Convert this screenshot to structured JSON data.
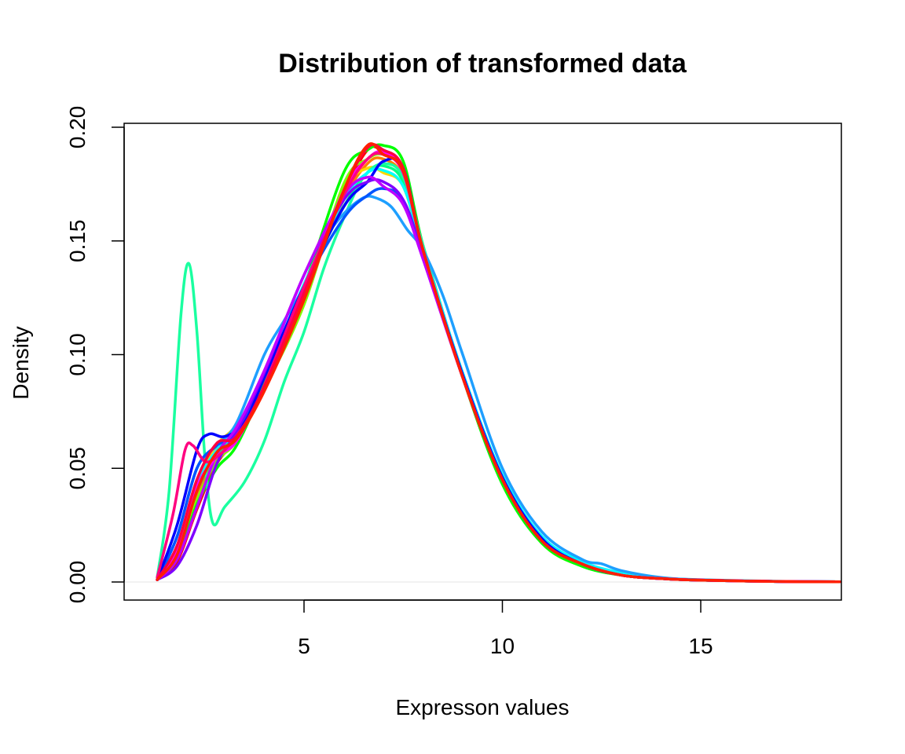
{
  "chart_data": {
    "type": "line",
    "title": "Distribution of transformed data",
    "xlabel": "Expresson values",
    "ylabel": "Density",
    "xlim": [
      0.8,
      18.5
    ],
    "ylim": [
      0,
      0.2
    ],
    "xticks": [
      5,
      10,
      15
    ],
    "xtick_labels": [
      "5",
      "10",
      "15"
    ],
    "yticks": [
      0,
      0.05,
      0.1,
      0.15,
      0.2
    ],
    "ytick_labels": [
      "0.00",
      "0.05",
      "0.10",
      "0.15",
      "0.20"
    ],
    "grid": false,
    "legend": "none",
    "series": [
      {
        "color": "#ff0000",
        "x": [
          1.3,
          1.8,
          2.3,
          2.8,
          3.3,
          4.0,
          5.0,
          6.0,
          6.6,
          7.0,
          7.5,
          8.0,
          9.0,
          10.0,
          11.0,
          12.0,
          13.0,
          14.0,
          15.0,
          17.0,
          18.5
        ],
        "y": [
          0.001,
          0.009,
          0.032,
          0.052,
          0.063,
          0.085,
          0.125,
          0.17,
          0.19,
          0.189,
          0.18,
          0.145,
          0.09,
          0.045,
          0.018,
          0.008,
          0.003,
          0.0015,
          0.0008,
          0.0002,
          0.0001
        ]
      },
      {
        "color": "#ff7f00",
        "x": [
          1.3,
          1.8,
          2.3,
          2.8,
          3.3,
          4.0,
          5.0,
          6.0,
          6.6,
          7.0,
          7.5,
          8.0,
          9.0,
          10.0,
          11.0,
          12.0,
          13.0,
          14.0,
          15.0,
          17.0,
          18.5
        ],
        "y": [
          0.001,
          0.012,
          0.038,
          0.055,
          0.065,
          0.088,
          0.127,
          0.168,
          0.184,
          0.186,
          0.178,
          0.146,
          0.09,
          0.046,
          0.019,
          0.008,
          0.003,
          0.0015,
          0.0008,
          0.0002,
          0.0001
        ]
      },
      {
        "color": "#ffd700",
        "x": [
          1.3,
          1.8,
          2.3,
          2.8,
          3.3,
          4.0,
          5.0,
          6.0,
          6.6,
          7.0,
          7.5,
          8.0,
          9.0,
          10.0,
          11.0,
          12.0,
          13.0,
          14.0,
          15.0,
          17.0,
          18.5
        ],
        "y": [
          0.001,
          0.014,
          0.042,
          0.06,
          0.069,
          0.088,
          0.128,
          0.172,
          0.182,
          0.18,
          0.174,
          0.145,
          0.091,
          0.046,
          0.019,
          0.008,
          0.003,
          0.0015,
          0.0008,
          0.0002,
          0.0001
        ]
      },
      {
        "color": "#80ff00",
        "x": [
          1.3,
          1.8,
          2.3,
          2.8,
          3.3,
          4.0,
          5.0,
          6.0,
          6.6,
          7.0,
          7.5,
          8.0,
          9.0,
          10.0,
          11.0,
          12.0,
          13.0,
          14.0,
          15.0,
          17.0,
          18.5
        ],
        "y": [
          0.001,
          0.012,
          0.036,
          0.053,
          0.062,
          0.085,
          0.122,
          0.175,
          0.186,
          0.188,
          0.182,
          0.146,
          0.09,
          0.044,
          0.017,
          0.007,
          0.003,
          0.0015,
          0.0008,
          0.0002,
          0.0001
        ]
      },
      {
        "color": "#00ff00",
        "x": [
          1.3,
          1.8,
          2.3,
          2.8,
          3.3,
          4.0,
          5.0,
          6.0,
          6.6,
          7.0,
          7.5,
          8.0,
          9.0,
          10.0,
          11.0,
          12.0,
          13.0,
          14.0,
          15.0,
          17.0,
          18.5
        ],
        "y": [
          0.001,
          0.01,
          0.034,
          0.05,
          0.06,
          0.087,
          0.13,
          0.18,
          0.19,
          0.192,
          0.185,
          0.148,
          0.09,
          0.043,
          0.017,
          0.007,
          0.003,
          0.0015,
          0.0008,
          0.0002,
          0.0001
        ]
      },
      {
        "color": "#00ff80",
        "x": [
          1.3,
          1.8,
          2.3,
          2.8,
          3.3,
          4.0,
          5.0,
          6.0,
          6.6,
          7.0,
          7.5,
          8.0,
          9.0,
          10.0,
          11.0,
          12.0,
          13.0,
          14.0,
          15.0,
          17.0,
          18.5
        ],
        "y": [
          0.001,
          0.013,
          0.04,
          0.056,
          0.066,
          0.09,
          0.13,
          0.165,
          0.18,
          0.183,
          0.176,
          0.145,
          0.091,
          0.046,
          0.019,
          0.008,
          0.003,
          0.0015,
          0.0008,
          0.0002,
          0.0001
        ]
      },
      {
        "color": "#1affa0",
        "x": [
          1.3,
          1.6,
          1.9,
          2.1,
          2.3,
          2.5,
          2.7,
          3.0,
          3.5,
          4.0,
          4.5,
          5.0,
          5.5,
          6.0,
          6.5,
          7.0,
          7.5,
          8.0,
          9.0,
          10.0,
          11.0,
          12.0,
          13.0,
          14.0,
          15.0,
          17.0,
          18.5
        ],
        "y": [
          0.002,
          0.04,
          0.118,
          0.14,
          0.11,
          0.055,
          0.026,
          0.033,
          0.044,
          0.062,
          0.088,
          0.11,
          0.138,
          0.16,
          0.178,
          0.184,
          0.178,
          0.148,
          0.091,
          0.045,
          0.018,
          0.008,
          0.003,
          0.0015,
          0.0008,
          0.0002,
          0.0001
        ]
      },
      {
        "color": "#00ffff",
        "x": [
          1.3,
          1.8,
          2.3,
          2.8,
          3.3,
          4.0,
          5.0,
          6.0,
          6.6,
          7.0,
          7.5,
          8.0,
          9.0,
          10.0,
          11.0,
          12.0,
          13.0,
          14.0,
          15.0,
          17.0,
          18.5
        ],
        "y": [
          0.001,
          0.015,
          0.043,
          0.058,
          0.066,
          0.09,
          0.131,
          0.168,
          0.18,
          0.181,
          0.174,
          0.146,
          0.092,
          0.047,
          0.02,
          0.009,
          0.004,
          0.0018,
          0.0009,
          0.0002,
          0.0001
        ]
      },
      {
        "color": "#1e9fff",
        "x": [
          1.3,
          1.8,
          2.3,
          2.8,
          3.3,
          4.0,
          4.5,
          5.0,
          5.5,
          6.0,
          6.5,
          6.8,
          7.2,
          7.6,
          8.0,
          8.5,
          9.0,
          10.0,
          11.0,
          12.0,
          12.5,
          13.0,
          14.0,
          15.0,
          17.0,
          18.5
        ],
        "y": [
          0.001,
          0.02,
          0.05,
          0.06,
          0.07,
          0.1,
          0.115,
          0.13,
          0.15,
          0.162,
          0.169,
          0.169,
          0.165,
          0.155,
          0.146,
          0.126,
          0.1,
          0.05,
          0.022,
          0.01,
          0.008,
          0.005,
          0.002,
          0.001,
          0.0003,
          0.0001
        ]
      },
      {
        "color": "#0055ff",
        "x": [
          1.3,
          1.8,
          2.3,
          2.8,
          3.3,
          4.0,
          5.0,
          6.0,
          6.6,
          7.0,
          7.5,
          8.0,
          9.0,
          10.0,
          11.0,
          12.0,
          13.0,
          14.0,
          15.0,
          17.0,
          18.5
        ],
        "y": [
          0.001,
          0.02,
          0.05,
          0.06,
          0.066,
          0.09,
          0.13,
          0.16,
          0.17,
          0.173,
          0.168,
          0.144,
          0.091,
          0.046,
          0.019,
          0.008,
          0.003,
          0.0015,
          0.0008,
          0.0002,
          0.0001
        ]
      },
      {
        "color": "#0000ff",
        "x": [
          1.3,
          1.8,
          2.3,
          2.6,
          3.0,
          3.5,
          4.0,
          5.0,
          6.0,
          6.6,
          7.0,
          7.5,
          8.0,
          9.0,
          10.0,
          11.0,
          12.0,
          13.0,
          14.0,
          15.0,
          17.0,
          18.5
        ],
        "y": [
          0.001,
          0.025,
          0.058,
          0.065,
          0.064,
          0.07,
          0.09,
          0.13,
          0.165,
          0.176,
          0.185,
          0.182,
          0.146,
          0.091,
          0.046,
          0.019,
          0.008,
          0.003,
          0.0015,
          0.0008,
          0.0002,
          0.0001
        ]
      },
      {
        "color": "#7f00ff",
        "x": [
          1.3,
          1.8,
          2.3,
          2.8,
          3.3,
          4.0,
          5.0,
          6.0,
          6.6,
          7.0,
          7.5,
          8.0,
          9.0,
          10.0,
          11.0,
          12.0,
          13.0,
          14.0,
          15.0,
          17.0,
          18.5
        ],
        "y": [
          0.001,
          0.007,
          0.025,
          0.052,
          0.066,
          0.092,
          0.135,
          0.168,
          0.176,
          0.176,
          0.168,
          0.143,
          0.09,
          0.045,
          0.018,
          0.008,
          0.003,
          0.0015,
          0.0008,
          0.0002,
          0.0001
        ]
      },
      {
        "color": "#bf00ff",
        "x": [
          1.3,
          1.8,
          2.3,
          2.8,
          3.3,
          4.0,
          5.0,
          6.0,
          6.6,
          7.0,
          7.5,
          8.0,
          9.0,
          10.0,
          11.0,
          12.0,
          13.0,
          14.0,
          15.0,
          17.0,
          18.5
        ],
        "y": [
          0.001,
          0.01,
          0.033,
          0.056,
          0.068,
          0.093,
          0.135,
          0.17,
          0.178,
          0.174,
          0.166,
          0.142,
          0.09,
          0.045,
          0.018,
          0.008,
          0.003,
          0.0015,
          0.0008,
          0.0002,
          0.0001
        ]
      },
      {
        "color": "#ff00ff",
        "x": [
          1.3,
          1.8,
          2.3,
          2.8,
          3.3,
          4.0,
          5.0,
          6.0,
          6.6,
          7.0,
          7.5,
          8.0,
          9.0,
          10.0,
          11.0,
          12.0,
          13.0,
          14.0,
          15.0,
          17.0,
          18.5
        ],
        "y": [
          0.001,
          0.014,
          0.042,
          0.055,
          0.062,
          0.086,
          0.128,
          0.172,
          0.186,
          0.189,
          0.18,
          0.146,
          0.09,
          0.045,
          0.018,
          0.008,
          0.003,
          0.0015,
          0.0008,
          0.0002,
          0.0001
        ]
      },
      {
        "color": "#ff0080",
        "x": [
          1.3,
          1.7,
          2.0,
          2.2,
          2.5,
          2.8,
          3.2,
          3.7,
          4.2,
          5.0,
          6.0,
          6.6,
          7.0,
          7.5,
          8.0,
          9.0,
          10.0,
          11.0,
          12.0,
          13.0,
          14.0,
          15.0,
          17.0,
          18.5
        ],
        "y": [
          0.002,
          0.03,
          0.058,
          0.06,
          0.053,
          0.055,
          0.062,
          0.075,
          0.095,
          0.13,
          0.17,
          0.186,
          0.188,
          0.18,
          0.146,
          0.09,
          0.045,
          0.018,
          0.008,
          0.003,
          0.0015,
          0.0008,
          0.0002,
          0.0001
        ]
      },
      {
        "color": "#ff0040",
        "x": [
          1.3,
          1.8,
          2.3,
          2.8,
          3.3,
          4.0,
          5.0,
          6.0,
          6.6,
          7.0,
          7.5,
          8.0,
          9.0,
          10.0,
          11.0,
          12.0,
          13.0,
          14.0,
          15.0,
          17.0,
          18.5
        ],
        "y": [
          0.001,
          0.016,
          0.045,
          0.061,
          0.064,
          0.086,
          0.127,
          0.172,
          0.191,
          0.19,
          0.182,
          0.146,
          0.09,
          0.045,
          0.018,
          0.008,
          0.003,
          0.0015,
          0.0008,
          0.0002,
          0.0001
        ]
      },
      {
        "color": "#ff2000",
        "x": [
          1.3,
          1.8,
          2.3,
          2.8,
          3.3,
          4.0,
          5.0,
          6.0,
          6.6,
          7.0,
          7.5,
          8.0,
          9.0,
          10.0,
          11.0,
          12.0,
          13.0,
          14.0,
          15.0,
          17.0,
          18.5
        ],
        "y": [
          0.001,
          0.012,
          0.04,
          0.057,
          0.063,
          0.084,
          0.124,
          0.172,
          0.192,
          0.188,
          0.181,
          0.146,
          0.09,
          0.045,
          0.018,
          0.008,
          0.003,
          0.0015,
          0.0008,
          0.0002,
          0.0001
        ]
      }
    ]
  }
}
